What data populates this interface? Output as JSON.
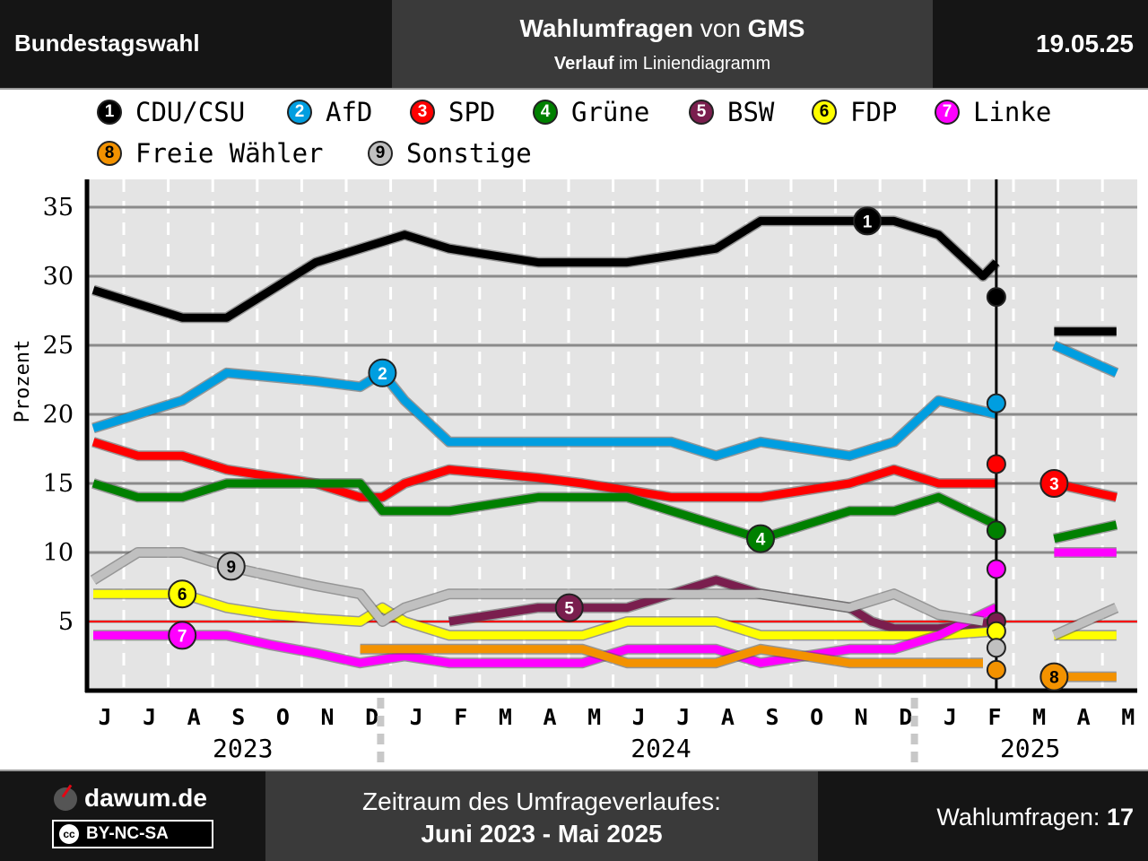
{
  "header": {
    "left_title": "Bundestagswahl",
    "center_bold1": "Wahlumfragen",
    "center_plain1": " von ",
    "center_bold2": "GMS",
    "sub_bold": "Verlauf",
    "sub_plain": " im Liniendiagramm",
    "date": "19.05.25"
  },
  "footer": {
    "site": "dawum.de",
    "license": "BY-NC-SA",
    "cc_symbol": "cc",
    "period_label": "Zeitraum des Umfrageverlaufes:",
    "period_value": "Juni 2023 - Mai 2025",
    "count_label": "Wahlumfragen: ",
    "count_value": "17"
  },
  "chart_data": {
    "type": "line",
    "ylabel": "Prozent",
    "ylim": [
      0,
      37
    ],
    "yticks": [
      5,
      10,
      15,
      20,
      25,
      30,
      35
    ],
    "threshold": 5,
    "grid": true,
    "month_labels": [
      "J",
      "J",
      "A",
      "S",
      "O",
      "N",
      "D",
      "J",
      "F",
      "M",
      "A",
      "M",
      "J",
      "J",
      "A",
      "S",
      "O",
      "N",
      "D",
      "J",
      "F",
      "M",
      "A",
      "M"
    ],
    "year_labels": [
      {
        "label": "2023",
        "month": 3.1
      },
      {
        "label": "2024",
        "month": 12.5
      },
      {
        "label": "2025",
        "month": 20.8
      }
    ],
    "year_boundaries": [
      6.5,
      18.5
    ],
    "election_marker_month": 20.3,
    "series": [
      {
        "id": 1,
        "name": "CDU/CSU",
        "color": "#000000",
        "segments": [
          [
            [
              0,
              29
            ],
            [
              1,
              28
            ],
            [
              2,
              27
            ],
            [
              3,
              27
            ],
            [
              4,
              29
            ],
            [
              5,
              31
            ],
            [
              6,
              32
            ],
            [
              7,
              33
            ],
            [
              8,
              32
            ],
            [
              9,
              31.5
            ],
            [
              10,
              31
            ],
            [
              11,
              31
            ],
            [
              12,
              31
            ],
            [
              13,
              31.5
            ],
            [
              14,
              32
            ],
            [
              15,
              34
            ],
            [
              16,
              34
            ],
            [
              17,
              34
            ],
            [
              18,
              34
            ],
            [
              19,
              33
            ],
            [
              20,
              30
            ],
            [
              20.3,
              31
            ]
          ],
          [
            [
              21.6,
              26
            ],
            [
              23,
              26
            ]
          ]
        ],
        "label_at": [
          17.4,
          34
        ],
        "result": 28.5
      },
      {
        "id": 2,
        "name": "AfD",
        "color": "#009ee0",
        "segments": [
          [
            [
              0,
              19
            ],
            [
              1,
              20
            ],
            [
              2,
              21
            ],
            [
              3,
              23
            ],
            [
              4,
              22.7
            ],
            [
              5,
              22.4
            ],
            [
              6,
              22
            ],
            [
              6.5,
              23
            ],
            [
              7,
              21
            ],
            [
              8,
              18
            ],
            [
              9,
              18
            ],
            [
              10,
              18
            ],
            [
              11,
              18
            ],
            [
              12,
              18
            ],
            [
              13,
              18
            ],
            [
              14,
              17
            ],
            [
              15,
              18
            ],
            [
              16,
              17.5
            ],
            [
              17,
              17
            ],
            [
              18,
              18
            ],
            [
              19,
              21
            ],
            [
              20.3,
              20
            ]
          ],
          [
            [
              21.6,
              25
            ],
            [
              23,
              23
            ]
          ]
        ],
        "label_at": [
          6.5,
          23
        ],
        "result": 20.8
      },
      {
        "id": 3,
        "name": "SPD",
        "color": "#ff0000",
        "segments": [
          [
            [
              0,
              18
            ],
            [
              1,
              17
            ],
            [
              2,
              17
            ],
            [
              3,
              16
            ],
            [
              4,
              15.5
            ],
            [
              5,
              15
            ],
            [
              6,
              14
            ],
            [
              6.5,
              14
            ],
            [
              7,
              15
            ],
            [
              8,
              16
            ],
            [
              9,
              15.7
            ],
            [
              10,
              15.4
            ],
            [
              11,
              15
            ],
            [
              12,
              14.5
            ],
            [
              13,
              14
            ],
            [
              14,
              14
            ],
            [
              15,
              14
            ],
            [
              16,
              14.5
            ],
            [
              17,
              15
            ],
            [
              18,
              16
            ],
            [
              19,
              15
            ],
            [
              20.3,
              15
            ]
          ],
          [
            [
              21.6,
              15
            ],
            [
              23,
              14
            ]
          ]
        ],
        "label_at": [
          21.6,
          15
        ],
        "result": 16.4
      },
      {
        "id": 4,
        "name": "Grüne",
        "color": "#008000",
        "segments": [
          [
            [
              0,
              15
            ],
            [
              1,
              14
            ],
            [
              2,
              14
            ],
            [
              3,
              15
            ],
            [
              4,
              15
            ],
            [
              5,
              15
            ],
            [
              6,
              15
            ],
            [
              6.5,
              13
            ],
            [
              7,
              13
            ],
            [
              8,
              13
            ],
            [
              9,
              13.5
            ],
            [
              10,
              14
            ],
            [
              11,
              14
            ],
            [
              12,
              14
            ],
            [
              13,
              13
            ],
            [
              14,
              12
            ],
            [
              15,
              11
            ],
            [
              16,
              12
            ],
            [
              17,
              13
            ],
            [
              18,
              13
            ],
            [
              19,
              14
            ],
            [
              20.3,
              12
            ]
          ],
          [
            [
              21.6,
              11
            ],
            [
              23,
              12
            ]
          ]
        ],
        "label_at": [
          15,
          11
        ],
        "result": 11.6
      },
      {
        "id": 5,
        "name": "BSW",
        "color": "#7a1e4e",
        "segments": [
          [
            [
              8,
              5
            ],
            [
              9,
              5.5
            ],
            [
              10,
              6
            ],
            [
              11,
              6
            ],
            [
              12,
              6
            ],
            [
              13,
              7
            ],
            [
              14,
              8
            ],
            [
              15,
              7
            ],
            [
              16,
              6.5
            ],
            [
              17,
              6
            ],
            [
              17.5,
              5
            ],
            [
              18,
              4.5
            ],
            [
              19,
              4.5
            ],
            [
              20.3,
              5
            ]
          ]
        ],
        "label_at": [
          10.7,
          6
        ],
        "result": 5
      },
      {
        "id": 6,
        "name": "FDP",
        "color": "#ffff00",
        "segments": [
          [
            [
              0,
              7
            ],
            [
              1,
              7
            ],
            [
              2,
              7
            ],
            [
              3,
              6
            ],
            [
              4,
              5.5
            ],
            [
              5,
              5.2
            ],
            [
              6,
              5
            ],
            [
              6.5,
              6
            ],
            [
              7,
              5
            ],
            [
              8,
              4
            ],
            [
              9,
              4
            ],
            [
              10,
              4
            ],
            [
              11,
              4
            ],
            [
              12,
              5
            ],
            [
              13,
              5
            ],
            [
              14,
              5
            ],
            [
              15,
              4
            ],
            [
              16,
              4
            ],
            [
              17,
              4
            ],
            [
              18,
              4
            ],
            [
              19,
              4
            ],
            [
              20.3,
              4.3
            ]
          ],
          [
            [
              21.6,
              4
            ],
            [
              23,
              4
            ]
          ]
        ],
        "label_at": [
          2,
          7
        ],
        "result": 4.3
      },
      {
        "id": 7,
        "name": "Linke",
        "color": "#ff00ff",
        "segments": [
          [
            [
              0,
              4
            ],
            [
              1,
              4
            ],
            [
              2,
              4
            ],
            [
              3,
              4
            ],
            [
              4,
              3.3
            ],
            [
              5,
              2.7
            ],
            [
              6,
              2
            ],
            [
              7,
              2.5
            ],
            [
              8,
              2
            ],
            [
              9,
              2
            ],
            [
              10,
              2
            ],
            [
              11,
              2
            ],
            [
              12,
              3
            ],
            [
              13,
              3
            ],
            [
              14,
              3
            ],
            [
              15,
              2
            ],
            [
              16,
              2.5
            ],
            [
              17,
              3
            ],
            [
              18,
              3
            ],
            [
              19,
              4
            ],
            [
              20.3,
              6
            ]
          ],
          [
            [
              21.6,
              10
            ],
            [
              23,
              10
            ]
          ]
        ],
        "label_at": [
          2,
          4
        ],
        "result": 8.8
      },
      {
        "id": 8,
        "name": "Freie Wähler",
        "color": "#f39200",
        "segments": [
          [
            [
              6,
              3
            ],
            [
              7,
              3
            ],
            [
              8,
              3
            ],
            [
              9,
              3
            ],
            [
              10,
              3
            ],
            [
              11,
              3
            ],
            [
              12,
              2
            ],
            [
              13,
              2
            ],
            [
              14,
              2
            ],
            [
              15,
              3
            ],
            [
              16,
              2.5
            ],
            [
              17,
              2
            ],
            [
              18,
              2
            ],
            [
              19,
              2
            ],
            [
              20,
              2
            ]
          ],
          [
            [
              21.6,
              1
            ],
            [
              23,
              1
            ]
          ]
        ],
        "label_at": [
          21.6,
          1
        ],
        "result": 1.5
      },
      {
        "id": 9,
        "name": "Sonstige",
        "color": "#c0c0c0",
        "segments": [
          [
            [
              0,
              8
            ],
            [
              1,
              10
            ],
            [
              2,
              10
            ],
            [
              3,
              9
            ],
            [
              4,
              8.3
            ],
            [
              5,
              7.6
            ],
            [
              6,
              7
            ],
            [
              6.5,
              5
            ],
            [
              7,
              6
            ],
            [
              8,
              7
            ],
            [
              9,
              7
            ],
            [
              10,
              7
            ],
            [
              11,
              7
            ],
            [
              12,
              7
            ],
            [
              13,
              7
            ],
            [
              14,
              7
            ],
            [
              15,
              7
            ],
            [
              16,
              6.5
            ],
            [
              17,
              6
            ],
            [
              18,
              7
            ],
            [
              19,
              5.5
            ],
            [
              20,
              5
            ]
          ],
          [
            [
              21.6,
              4
            ],
            [
              23,
              6
            ]
          ]
        ],
        "label_at": [
          3.1,
          9
        ],
        "result": 3.1
      }
    ]
  }
}
